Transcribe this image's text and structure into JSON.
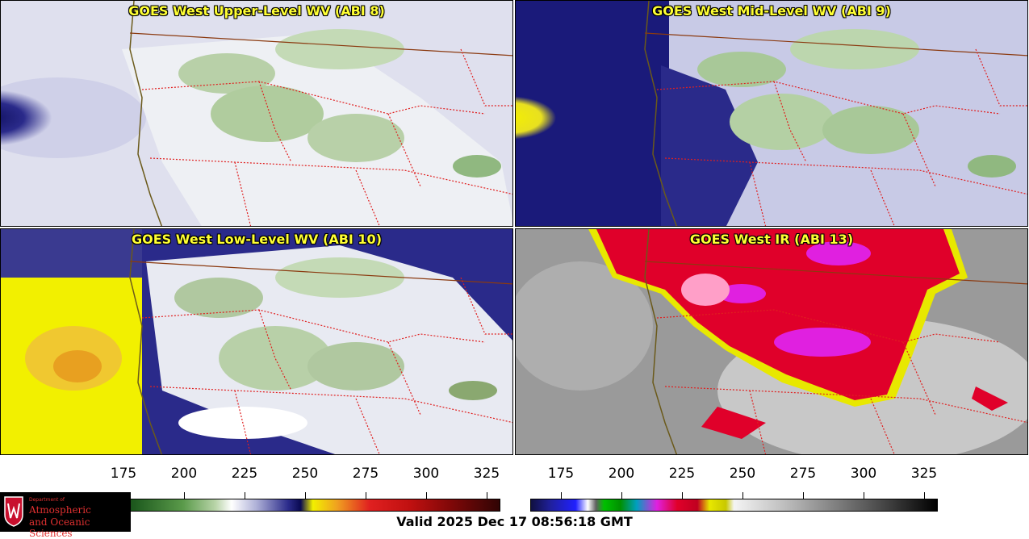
{
  "panels": [
    {
      "id": "upper",
      "title": "GOES West Upper-Level WV (ABI 8)",
      "colors": {
        "ocean": "#dfe0ee",
        "dark": "#1a1a7a",
        "land": "#b8d0a8",
        "bright": "#ffffff"
      }
    },
    {
      "id": "mid",
      "title": "GOES West Mid-Level WV (ABI 9)",
      "colors": {
        "ocean": "#c8cae6",
        "dark": "#1a1a7a",
        "land": "#a8c898",
        "bright": "#ffffff",
        "warm": "#f2f000"
      }
    },
    {
      "id": "low",
      "title": "GOES West Low-Level WV (ABI 10)",
      "colors": {
        "ocean": "#f2f000",
        "dark": "#1a1a7a",
        "land": "#b0c8a0",
        "bright": "#ffffff",
        "warm": "#e8a020"
      }
    },
    {
      "id": "ir",
      "title": "GOES West IR (ABI 13)",
      "colors": {
        "ocean": "#9a9a9a",
        "cloud": "#e8e8e8",
        "cold": "#e0002a",
        "colder": "#e020e0",
        "edge": "#e8e800"
      }
    }
  ],
  "colorbars": [
    {
      "id": "wv",
      "ticks": [
        "175",
        "200",
        "225",
        "250",
        "275",
        "300",
        "325"
      ]
    },
    {
      "id": "ir",
      "ticks": [
        "175",
        "200",
        "225",
        "250",
        "275",
        "300",
        "325"
      ]
    }
  ],
  "logo": {
    "line1": "Department of",
    "line2": "Atmospheric",
    "line3": "and Oceanic Sciences"
  },
  "valid_time": "Valid 2025 Dec 17 08:56:18 GMT"
}
